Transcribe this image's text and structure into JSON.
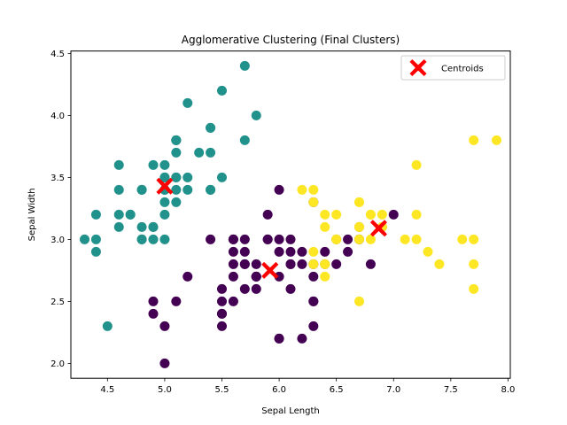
{
  "chart_data": {
    "type": "scatter",
    "title": "Agglomerative Clustering (Final Clusters)",
    "xlabel": "Sepal Length",
    "ylabel": "Sepal Width",
    "xlim": [
      4.18,
      8.02
    ],
    "ylim": [
      1.88,
      4.52
    ],
    "xticks": [
      4.5,
      5.0,
      5.5,
      6.0,
      6.5,
      7.0,
      7.5,
      8.0
    ],
    "yticks": [
      2.0,
      2.5,
      3.0,
      3.5,
      4.0,
      4.5
    ],
    "xtick_labels": [
      "4.5",
      "5.0",
      "5.5",
      "6.0",
      "6.5",
      "7.0",
      "7.5",
      "8.0"
    ],
    "ytick_labels": [
      "2.0",
      "2.5",
      "3.0",
      "3.5",
      "4.0",
      "4.5"
    ],
    "grid": false,
    "legend": {
      "placement": "top-right",
      "entries": [
        "Centroids"
      ]
    },
    "colors": {
      "teal": "#21918c",
      "purple": "#440154",
      "yellow": "#fde725",
      "centroid": "#ff0000",
      "frame": "#000000"
    },
    "series": [
      {
        "color": "#21918c",
        "points": [
          [
            5.1,
            3.5
          ],
          [
            4.9,
            3.0
          ],
          [
            4.7,
            3.2
          ],
          [
            4.6,
            3.1
          ],
          [
            5.0,
            3.6
          ],
          [
            5.4,
            3.9
          ],
          [
            4.6,
            3.4
          ],
          [
            5.0,
            3.4
          ],
          [
            4.4,
            2.9
          ],
          [
            4.9,
            3.1
          ],
          [
            5.4,
            3.7
          ],
          [
            4.8,
            3.4
          ],
          [
            4.8,
            3.0
          ],
          [
            4.3,
            3.0
          ],
          [
            5.8,
            4.0
          ],
          [
            5.7,
            4.4
          ],
          [
            5.4,
            3.9
          ],
          [
            5.1,
            3.5
          ],
          [
            5.7,
            3.8
          ],
          [
            5.1,
            3.8
          ],
          [
            5.4,
            3.4
          ],
          [
            5.1,
            3.7
          ],
          [
            4.6,
            3.6
          ],
          [
            5.1,
            3.3
          ],
          [
            4.8,
            3.4
          ],
          [
            5.0,
            3.0
          ],
          [
            5.0,
            3.4
          ],
          [
            5.2,
            3.5
          ],
          [
            5.2,
            3.4
          ],
          [
            4.7,
            3.2
          ],
          [
            4.8,
            3.1
          ],
          [
            5.4,
            3.4
          ],
          [
            5.2,
            4.1
          ],
          [
            5.5,
            4.2
          ],
          [
            4.9,
            3.1
          ],
          [
            5.0,
            3.2
          ],
          [
            5.5,
            3.5
          ],
          [
            4.9,
            3.6
          ],
          [
            4.4,
            3.0
          ],
          [
            5.1,
            3.4
          ],
          [
            5.0,
            3.5
          ],
          [
            4.5,
            2.3
          ],
          [
            4.4,
            3.2
          ],
          [
            5.0,
            3.5
          ],
          [
            5.1,
            3.8
          ],
          [
            4.8,
            3.0
          ],
          [
            5.1,
            3.8
          ],
          [
            4.6,
            3.2
          ],
          [
            5.3,
            3.7
          ],
          [
            5.0,
            3.3
          ]
        ]
      },
      {
        "color": "#440154",
        "points": [
          [
            7.0,
            3.2
          ],
          [
            5.5,
            2.3
          ],
          [
            6.5,
            2.8
          ],
          [
            5.7,
            2.8
          ],
          [
            6.3,
            3.3
          ],
          [
            4.9,
            2.4
          ],
          [
            6.6,
            2.9
          ],
          [
            5.2,
            2.7
          ],
          [
            5.0,
            2.0
          ],
          [
            5.9,
            3.0
          ],
          [
            6.0,
            2.2
          ],
          [
            6.1,
            2.9
          ],
          [
            5.6,
            2.9
          ],
          [
            6.7,
            3.1
          ],
          [
            5.6,
            3.0
          ],
          [
            5.8,
            2.7
          ],
          [
            6.2,
            2.2
          ],
          [
            5.6,
            2.5
          ],
          [
            5.9,
            3.2
          ],
          [
            6.1,
            2.8
          ],
          [
            6.3,
            2.5
          ],
          [
            6.1,
            2.8
          ],
          [
            6.4,
            2.9
          ],
          [
            6.6,
            3.0
          ],
          [
            6.8,
            2.8
          ],
          [
            6.0,
            2.9
          ],
          [
            5.7,
            2.6
          ],
          [
            5.5,
            2.4
          ],
          [
            5.5,
            2.4
          ],
          [
            5.8,
            2.7
          ],
          [
            6.0,
            2.7
          ],
          [
            5.4,
            3.0
          ],
          [
            6.0,
            3.4
          ],
          [
            6.3,
            2.3
          ],
          [
            5.6,
            3.0
          ],
          [
            5.5,
            2.5
          ],
          [
            5.5,
            2.6
          ],
          [
            6.1,
            3.0
          ],
          [
            5.8,
            2.6
          ],
          [
            5.0,
            2.3
          ],
          [
            5.6,
            2.7
          ],
          [
            5.7,
            3.0
          ],
          [
            5.7,
            2.9
          ],
          [
            6.2,
            2.9
          ],
          [
            5.1,
            2.5
          ],
          [
            5.7,
            2.8
          ],
          [
            5.8,
            2.7
          ],
          [
            4.9,
            2.5
          ],
          [
            6.0,
            2.2
          ],
          [
            6.2,
            2.8
          ],
          [
            5.6,
            2.8
          ],
          [
            6.3,
            2.7
          ],
          [
            6.1,
            2.6
          ],
          [
            6.0,
            3.0
          ],
          [
            5.8,
            2.8
          ],
          [
            6.3,
            2.8
          ],
          [
            6.4,
            2.8
          ],
          [
            5.9,
            3.0
          ],
          [
            6.9,
            3.1
          ],
          [
            5.8,
            2.7
          ],
          [
            6.7,
            3.0
          ],
          [
            6.3,
            2.5
          ],
          [
            6.5,
            3.0
          ]
        ]
      },
      {
        "color": "#fde725",
        "points": [
          [
            6.3,
            3.3
          ],
          [
            7.1,
            3.0
          ],
          [
            6.3,
            2.9
          ],
          [
            6.5,
            3.0
          ],
          [
            7.6,
            3.0
          ],
          [
            7.3,
            2.9
          ],
          [
            6.7,
            2.5
          ],
          [
            7.2,
            3.6
          ],
          [
            6.5,
            3.2
          ],
          [
            6.4,
            2.7
          ],
          [
            6.8,
            3.0
          ],
          [
            6.4,
            3.2
          ],
          [
            6.5,
            3.0
          ],
          [
            7.7,
            3.8
          ],
          [
            7.7,
            2.6
          ],
          [
            6.9,
            3.2
          ],
          [
            7.7,
            2.8
          ],
          [
            6.7,
            3.3
          ],
          [
            7.2,
            3.2
          ],
          [
            6.4,
            2.8
          ],
          [
            7.2,
            3.0
          ],
          [
            7.4,
            2.8
          ],
          [
            7.9,
            3.8
          ],
          [
            6.4,
            2.8
          ],
          [
            7.7,
            3.0
          ],
          [
            6.3,
            3.4
          ],
          [
            6.4,
            3.1
          ],
          [
            6.9,
            3.1
          ],
          [
            6.7,
            3.1
          ],
          [
            6.8,
            3.2
          ],
          [
            6.7,
            3.3
          ],
          [
            6.7,
            3.0
          ],
          [
            6.2,
            3.4
          ],
          [
            6.8,
            3.2
          ],
          [
            6.7,
            3.1
          ],
          [
            6.9,
            3.1
          ],
          [
            6.3,
            2.8
          ]
        ]
      }
    ],
    "centroids": [
      [
        5.0,
        3.43
      ],
      [
        5.92,
        2.75
      ],
      [
        6.87,
        3.09
      ]
    ]
  }
}
